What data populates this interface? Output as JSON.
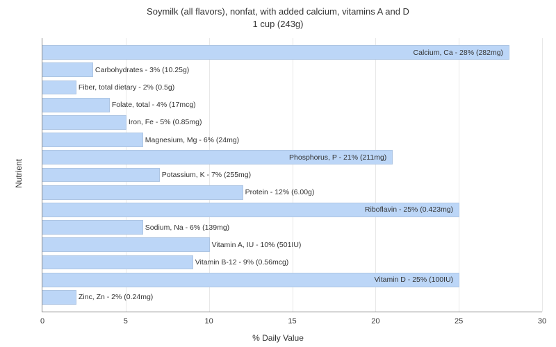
{
  "chart": {
    "type": "bar-horizontal",
    "title_line1": "Soymilk (all flavors), nonfat, with added calcium, vitamins A and D",
    "title_line2": "1 cup (243g)",
    "x_axis_label": "% Daily Value",
    "y_axis_label": "Nutrient",
    "xlim_min": 0,
    "xlim_max": 30,
    "xtick_step": 5,
    "xticks": [
      0,
      5,
      10,
      15,
      20,
      25,
      30
    ],
    "bar_color": "#bcd6f7",
    "grid_color": "#e8e8e8",
    "axis_color": "#888888",
    "background_color": "#ffffff",
    "title_fontsize": 13,
    "label_fontsize": 12,
    "tick_fontsize": 11,
    "bar_label_fontsize": 10.5,
    "nutrients": [
      {
        "value": 28,
        "label": "Calcium, Ca - 28% (282mg)",
        "label_inside": true
      },
      {
        "value": 3,
        "label": "Carbohydrates - 3% (10.25g)",
        "label_inside": false
      },
      {
        "value": 2,
        "label": "Fiber, total dietary - 2% (0.5g)",
        "label_inside": false
      },
      {
        "value": 4,
        "label": "Folate, total - 4% (17mcg)",
        "label_inside": false
      },
      {
        "value": 5,
        "label": "Iron, Fe - 5% (0.85mg)",
        "label_inside": false
      },
      {
        "value": 6,
        "label": "Magnesium, Mg - 6% (24mg)",
        "label_inside": false
      },
      {
        "value": 21,
        "label": "Phosphorus, P - 21% (211mg)",
        "label_inside": true
      },
      {
        "value": 7,
        "label": "Potassium, K - 7% (255mg)",
        "label_inside": false
      },
      {
        "value": 12,
        "label": "Protein - 12% (6.00g)",
        "label_inside": false
      },
      {
        "value": 25,
        "label": "Riboflavin - 25% (0.423mg)",
        "label_inside": true
      },
      {
        "value": 6,
        "label": "Sodium, Na - 6% (139mg)",
        "label_inside": false
      },
      {
        "value": 10,
        "label": "Vitamin A, IU - 10% (501IU)",
        "label_inside": false
      },
      {
        "value": 9,
        "label": "Vitamin B-12 - 9% (0.56mcg)",
        "label_inside": false
      },
      {
        "value": 25,
        "label": "Vitamin D - 25% (100IU)",
        "label_inside": true
      },
      {
        "value": 2,
        "label": "Zinc, Zn - 2% (0.24mg)",
        "label_inside": false
      }
    ]
  }
}
